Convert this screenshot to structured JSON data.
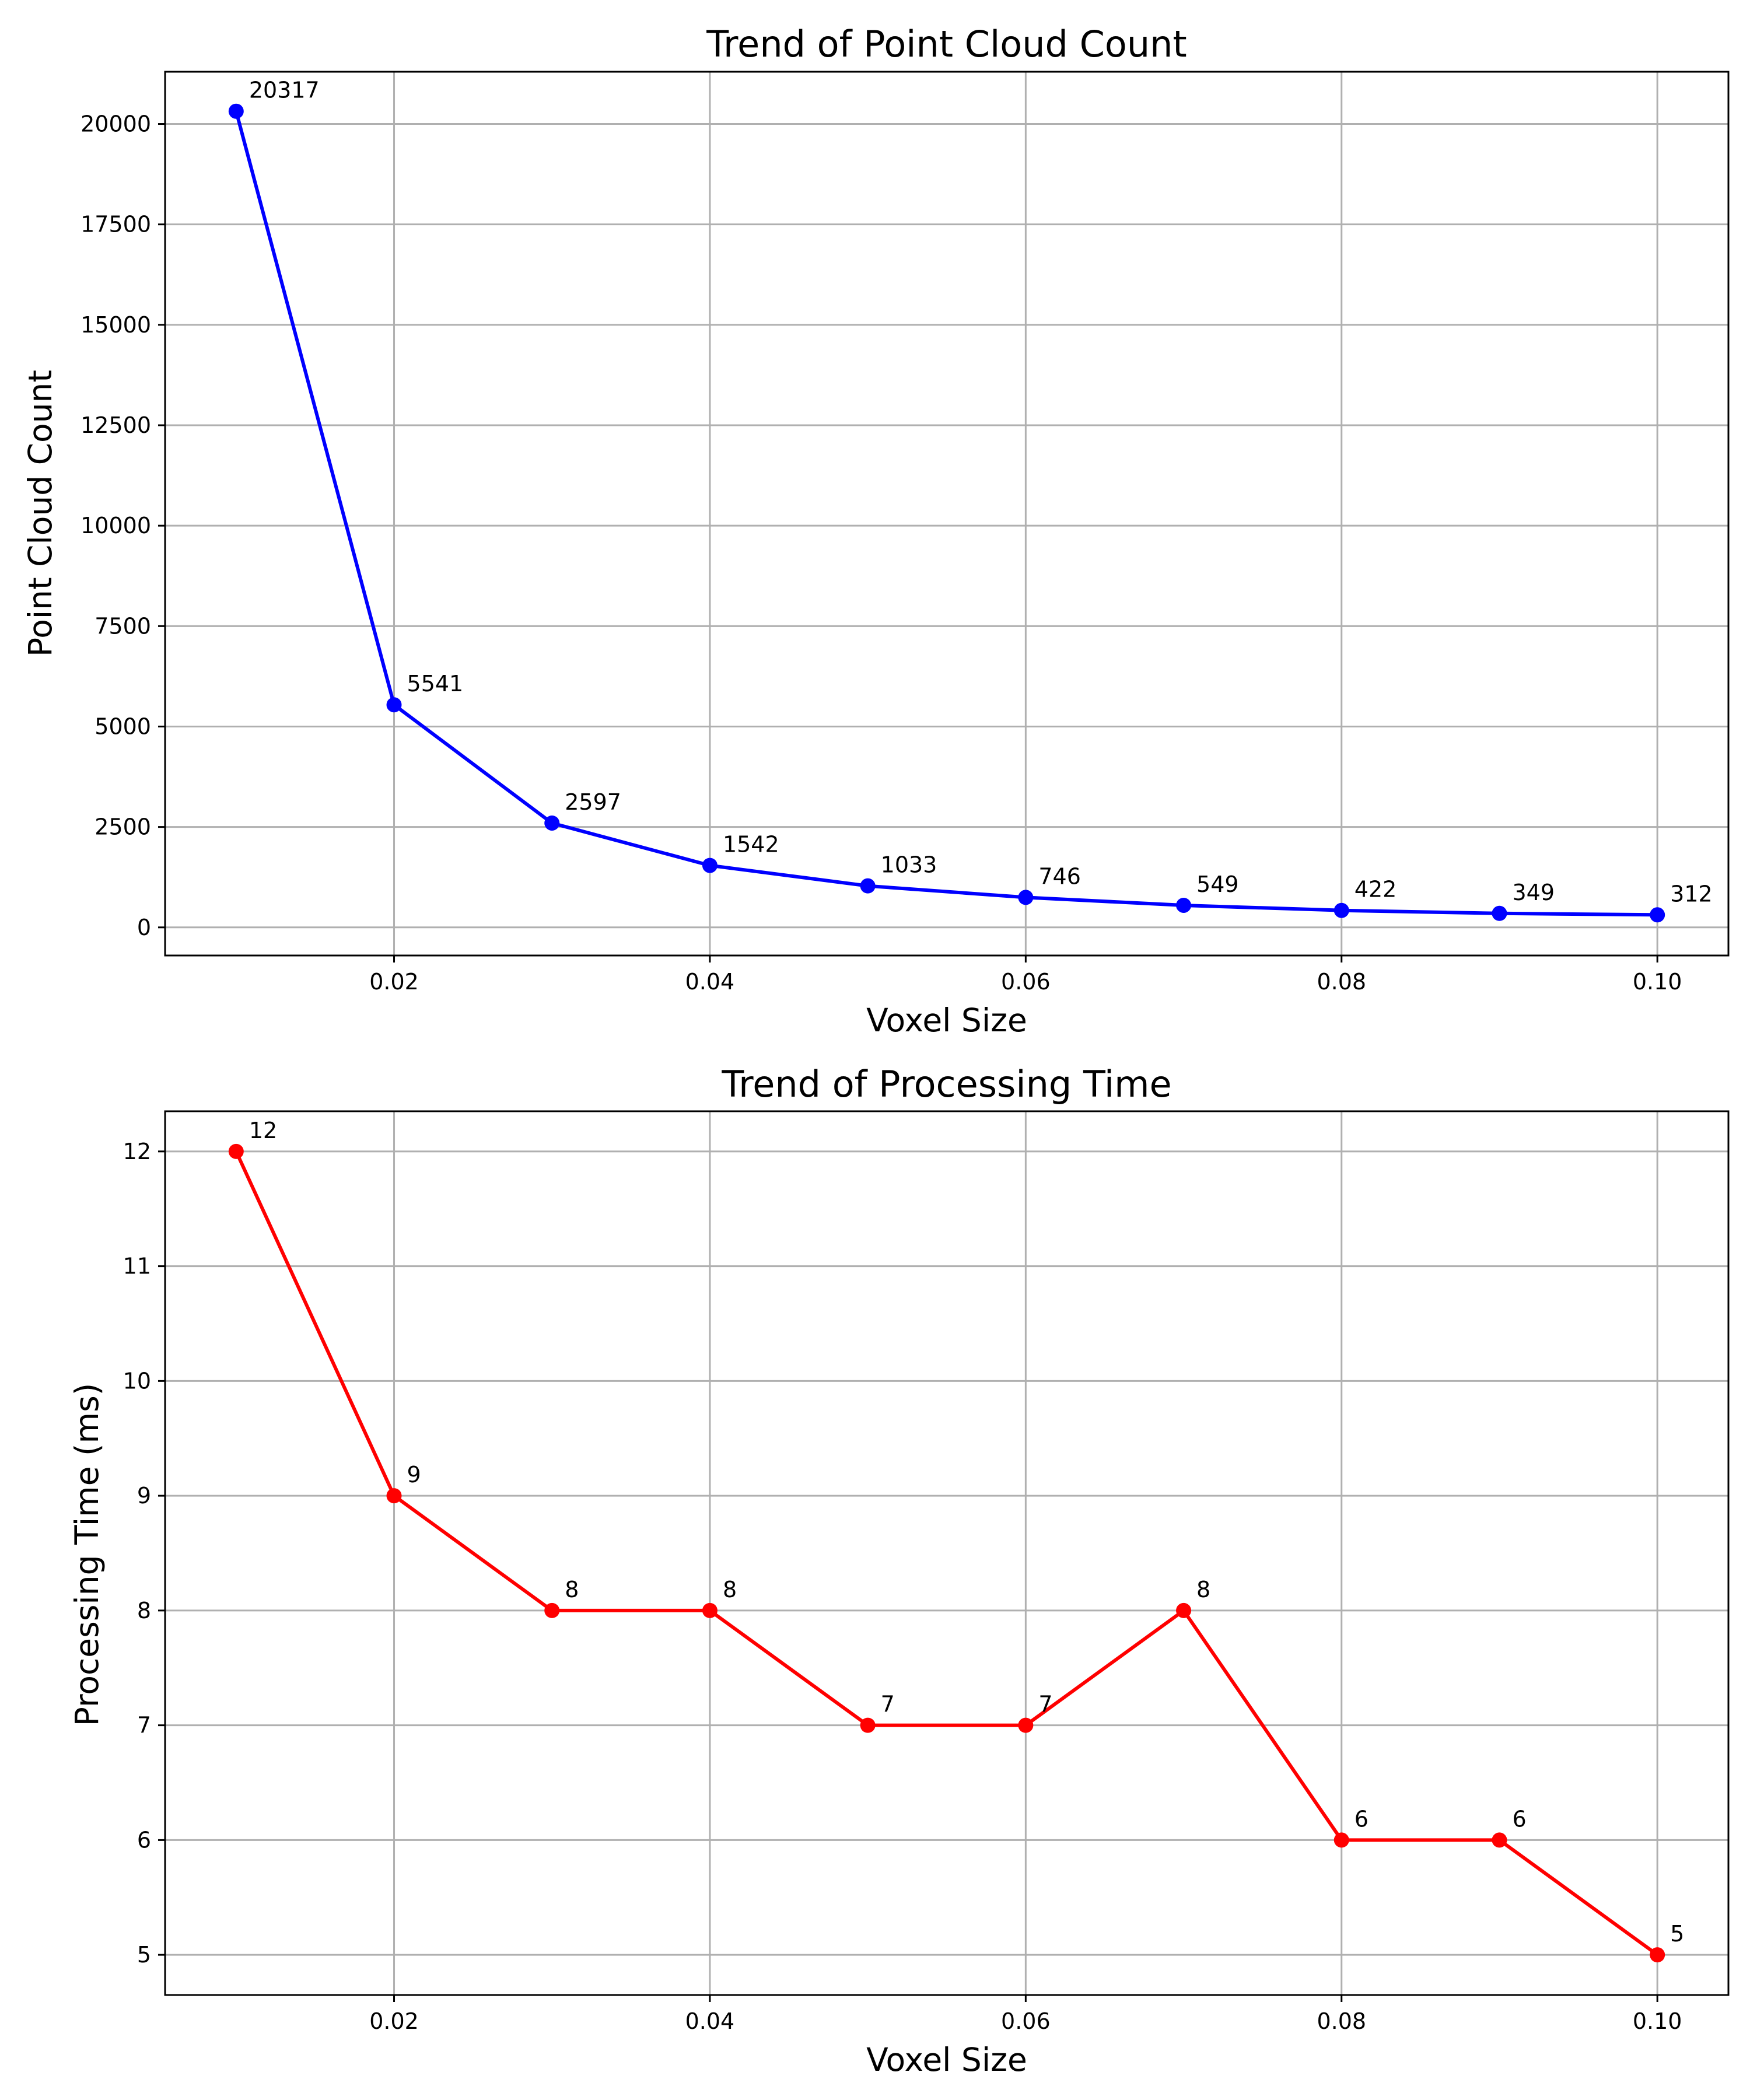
{
  "chart_data": [
    {
      "type": "line",
      "title": "Trend of Point Cloud Count",
      "xlabel": "Voxel Size",
      "ylabel": "Point Cloud Count",
      "x": [
        0.01,
        0.02,
        0.03,
        0.04,
        0.05,
        0.06,
        0.07,
        0.08,
        0.09,
        0.1
      ],
      "series": [
        {
          "values": [
            20317,
            5541,
            2597,
            1542,
            1033,
            746,
            549,
            422,
            349,
            312
          ],
          "color": "#0000ff",
          "marker": "circle"
        }
      ],
      "data_labels": [
        "20317",
        "5541",
        "2597",
        "1542",
        "1033",
        "746",
        "549",
        "422",
        "349",
        "312"
      ],
      "xlim": [
        0.0055,
        0.1045
      ],
      "ylim": [
        -700,
        21300
      ],
      "xticks": [
        0.02,
        0.04,
        0.06,
        0.08,
        0.1
      ],
      "xtick_labels": [
        "0.02",
        "0.04",
        "0.06",
        "0.08",
        "0.10"
      ],
      "yticks": [
        0,
        2500,
        5000,
        7500,
        10000,
        12500,
        15000,
        17500,
        20000
      ],
      "ytick_labels": [
        "0",
        "2500",
        "5000",
        "7500",
        "10000",
        "12500",
        "15000",
        "17500",
        "20000"
      ],
      "grid": true
    },
    {
      "type": "line",
      "title": "Trend of Processing Time",
      "xlabel": "Voxel Size",
      "ylabel": "Processing Time (ms)",
      "x": [
        0.01,
        0.02,
        0.03,
        0.04,
        0.05,
        0.06,
        0.07,
        0.08,
        0.09,
        0.1
      ],
      "series": [
        {
          "values": [
            12,
            9,
            8,
            8,
            7,
            7,
            8,
            6,
            6,
            5
          ],
          "color": "#ff0000",
          "marker": "circle"
        }
      ],
      "data_labels": [
        "12",
        "9",
        "8",
        "8",
        "7",
        "7",
        "8",
        "6",
        "6",
        "5"
      ],
      "xlim": [
        0.0055,
        0.1045
      ],
      "ylim": [
        4.65,
        12.35
      ],
      "xticks": [
        0.02,
        0.04,
        0.06,
        0.08,
        0.1
      ],
      "xtick_labels": [
        "0.02",
        "0.04",
        "0.06",
        "0.08",
        "0.10"
      ],
      "yticks": [
        5,
        6,
        7,
        8,
        9,
        10,
        11,
        12
      ],
      "ytick_labels": [
        "5",
        "6",
        "7",
        "8",
        "9",
        "10",
        "11",
        "12"
      ],
      "grid": true
    }
  ]
}
